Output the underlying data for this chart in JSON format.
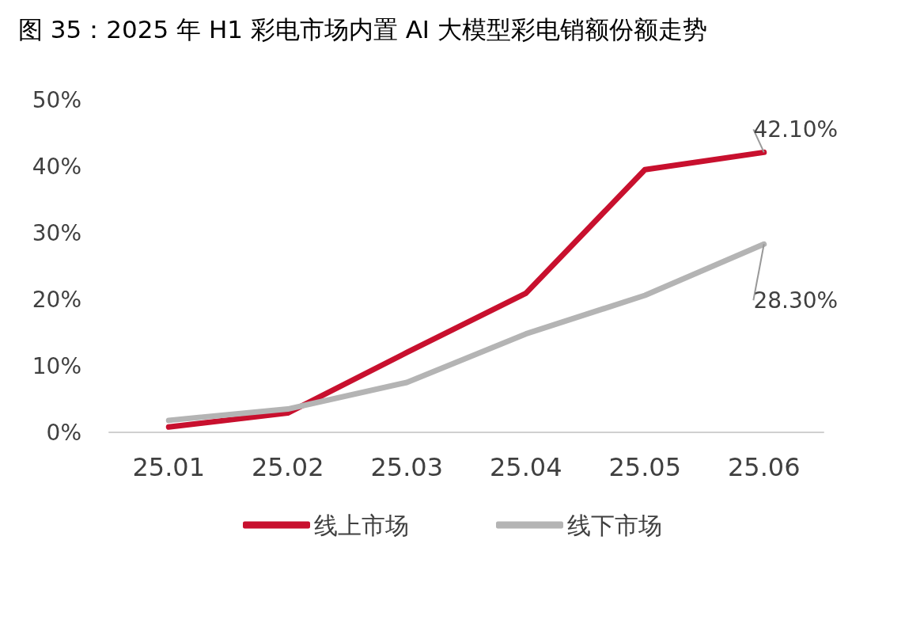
{
  "chart_data": {
    "type": "line",
    "title": "图 35：2025 年 H1 彩电市场内置 AI 大模型彩电销额份额走势",
    "categories": [
      "25.01",
      "25.02",
      "25.03",
      "25.04",
      "25.05",
      "25.06"
    ],
    "series": [
      {
        "name": "线上市场",
        "color": "#c8102e",
        "values": [
          0.8,
          2.9,
          12.0,
          20.9,
          39.5,
          42.1
        ],
        "value_labels": [
          null,
          null,
          null,
          null,
          null,
          "42.10%"
        ]
      },
      {
        "name": "线下市场",
        "color": "#b4b4b4",
        "values": [
          1.8,
          3.5,
          7.5,
          14.8,
          20.6,
          28.3
        ],
        "value_labels": [
          null,
          null,
          null,
          null,
          null,
          "28.30%"
        ]
      }
    ],
    "ylim": [
      0,
      50
    ],
    "yticks": [
      {
        "value": 0,
        "label": "0%"
      },
      {
        "value": 10,
        "label": "10%"
      },
      {
        "value": 20,
        "label": "20%"
      },
      {
        "value": 30,
        "label": "30%"
      },
      {
        "value": 40,
        "label": "40%"
      },
      {
        "value": 50,
        "label": "50%"
      }
    ],
    "grid": false,
    "legend": "bottom",
    "marker": "none",
    "line_style": "solid"
  }
}
